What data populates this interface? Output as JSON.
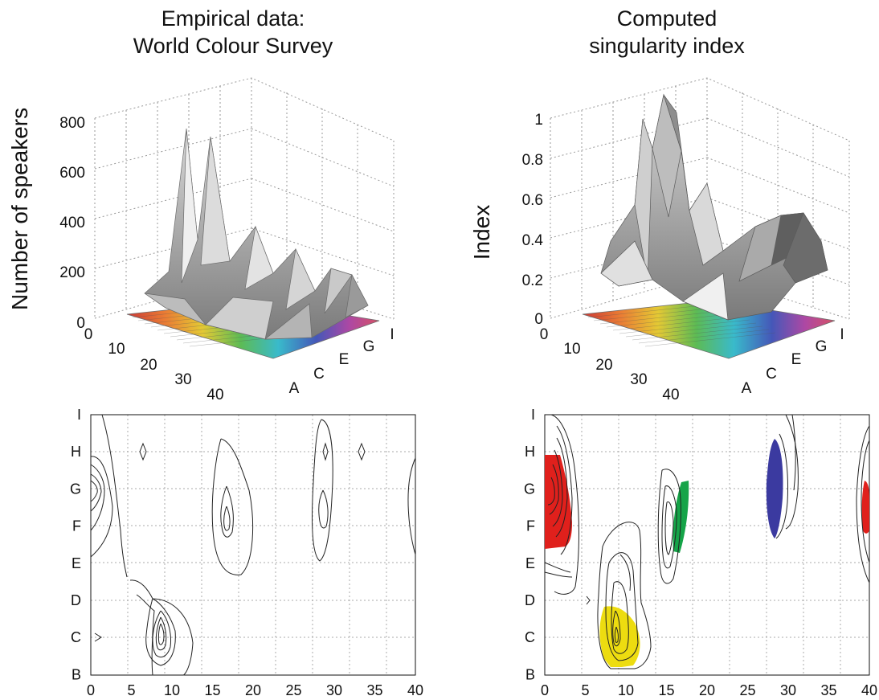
{
  "titles": {
    "left": [
      "Empirical data:",
      "World Colour Survey"
    ],
    "right": [
      "Computed",
      "singularity index"
    ]
  },
  "chart_data": [
    {
      "type": "surface",
      "title": "Empirical data: World Colour Survey",
      "zlabel": "Number of speakers",
      "zticks": [
        "0",
        "200",
        "400",
        "600",
        "800"
      ],
      "zlim": [
        0,
        800
      ],
      "x_ticks": [
        "0",
        "10",
        "20",
        "30",
        "40"
      ],
      "y_ticks": [
        "A",
        "C",
        "E",
        "G",
        "I"
      ],
      "peaks": [
        {
          "hue": 3,
          "lightness": "G",
          "value": 140
        },
        {
          "hue": 8,
          "lightness": "C",
          "value": 720
        },
        {
          "hue": 12,
          "lightness": "C",
          "value": 680
        },
        {
          "hue": 17,
          "lightness": "F",
          "value": 300
        },
        {
          "hue": 29,
          "lightness": "F",
          "value": 240
        },
        {
          "hue": 38,
          "lightness": "F",
          "value": 200
        }
      ]
    },
    {
      "type": "surface",
      "title": "Computed singularity index",
      "zlabel": "Index",
      "zticks": [
        "0",
        "0.2",
        "0.4",
        "0.6",
        "0.8",
        "1"
      ],
      "zlim": [
        0,
        1
      ],
      "x_ticks": [
        "0",
        "10",
        "20",
        "30",
        "40"
      ],
      "y_ticks": [
        "A",
        "C",
        "E",
        "G",
        "I"
      ],
      "peaks": [
        {
          "hue": 3,
          "lightness": "G",
          "value": 0.75
        },
        {
          "hue": 8,
          "lightness": "C",
          "value": 0.95
        },
        {
          "hue": 10,
          "lightness": "C",
          "value": 1.0
        },
        {
          "hue": 17,
          "lightness": "F",
          "value": 0.65
        },
        {
          "hue": 29,
          "lightness": "G",
          "value": 0.45
        },
        {
          "hue": 38,
          "lightness": "F",
          "value": 0.55
        }
      ]
    },
    {
      "type": "contour",
      "xlim": [
        0,
        40
      ],
      "x_ticks": [
        "0",
        "5",
        "10",
        "15",
        "20",
        "25",
        "30",
        "35",
        "40"
      ],
      "y_ticks": [
        "I",
        "H",
        "G",
        "F",
        "E",
        "D",
        "C",
        "B"
      ],
      "grid": true
    },
    {
      "type": "contour",
      "xlim": [
        0,
        40
      ],
      "x_ticks": [
        "0",
        "5",
        "10",
        "15",
        "20",
        "25",
        "30",
        "35",
        "40"
      ],
      "y_ticks": [
        "I",
        "H",
        "G",
        "F",
        "E",
        "D",
        "C",
        "B"
      ],
      "grid": true,
      "regions": [
        {
          "color": "#e0201c",
          "hue_center": 2,
          "lightness_center": "F"
        },
        {
          "color": "#eddc10",
          "hue_center": 10,
          "lightness_center": "C"
        },
        {
          "color": "#15a448",
          "hue_center": 17.5,
          "lightness_center": "F"
        },
        {
          "color": "#3b3aa0",
          "hue_center": 29,
          "lightness_center": "G"
        },
        {
          "color": "#e0201c",
          "hue_center": 40,
          "lightness_center": "F"
        }
      ]
    }
  ]
}
